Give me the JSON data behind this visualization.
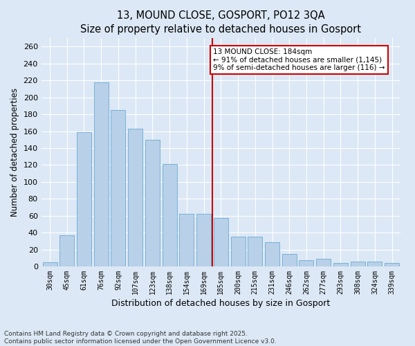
{
  "title": "13, MOUND CLOSE, GOSPORT, PO12 3QA",
  "subtitle": "Size of property relative to detached houses in Gosport",
  "xlabel": "Distribution of detached houses by size in Gosport",
  "ylabel": "Number of detached properties",
  "categories": [
    "30sqm",
    "45sqm",
    "61sqm",
    "76sqm",
    "92sqm",
    "107sqm",
    "123sqm",
    "138sqm",
    "154sqm",
    "169sqm",
    "185sqm",
    "200sqm",
    "215sqm",
    "231sqm",
    "246sqm",
    "262sqm",
    "277sqm",
    "293sqm",
    "308sqm",
    "324sqm",
    "339sqm"
  ],
  "values": [
    5,
    37,
    159,
    218,
    185,
    163,
    150,
    121,
    62,
    62,
    57,
    35,
    35,
    29,
    15,
    7,
    9,
    4,
    6,
    6,
    4
  ],
  "bar_color": "#b8d0e8",
  "bar_edge_color": "#6aaad4",
  "vline_x_index": 10,
  "vline_color": "#cc0000",
  "annotation_text": "13 MOUND CLOSE: 184sqm\n← 91% of detached houses are smaller (1,145)\n9% of semi-detached houses are larger (116) →",
  "annotation_box_color": "#cc0000",
  "annotation_fontsize": 7.5,
  "title_fontsize": 10.5,
  "subtitle_fontsize": 9.5,
  "ylabel_fontsize": 8.5,
  "xlabel_fontsize": 9,
  "tick_fontsize": 8,
  "xtick_fontsize": 7,
  "footer_text": "Contains HM Land Registry data © Crown copyright and database right 2025.\nContains public sector information licensed under the Open Government Licence v3.0.",
  "ylim": [
    0,
    270
  ],
  "yticks": [
    0,
    20,
    40,
    60,
    80,
    100,
    120,
    140,
    160,
    180,
    200,
    220,
    240,
    260
  ],
  "background_color": "#dce8f5",
  "plot_bg_color": "#dce8f5",
  "grid_color": "#ffffff",
  "footer_fontsize": 6.5
}
